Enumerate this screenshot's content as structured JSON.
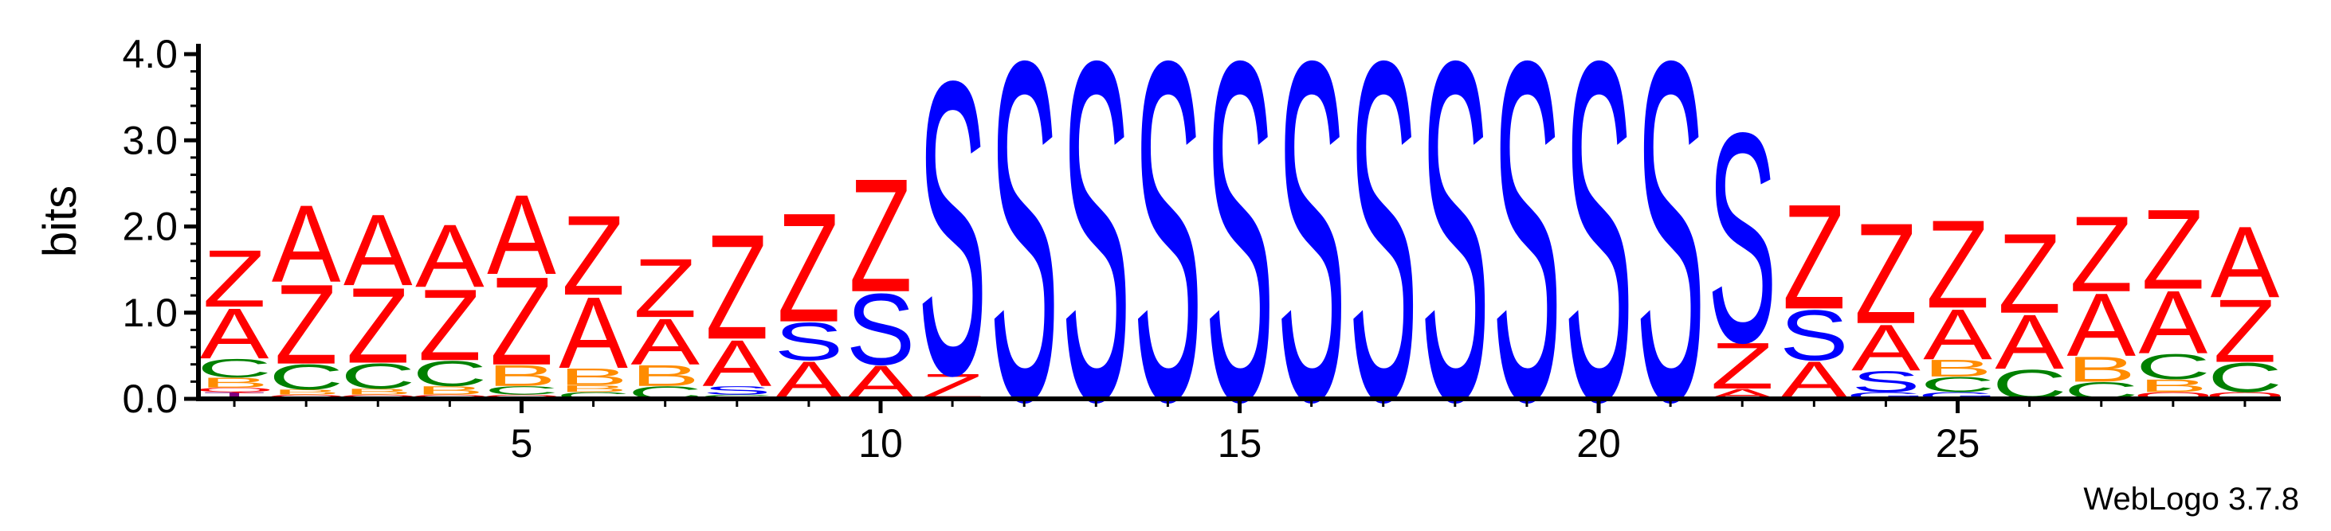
{
  "chart_data": {
    "type": "sequence-logo",
    "ylabel": "bits",
    "ylim": [
      0,
      4.0
    ],
    "yticks": [
      "0.0",
      "1.0",
      "2.0",
      "3.0",
      "4.0"
    ],
    "xlim": [
      0.5,
      29.5
    ],
    "xticks": [
      "5",
      "10",
      "15",
      "20",
      "25"
    ],
    "credit": "WebLogo 3.7.8",
    "colors": {
      "A": "#ff0000",
      "Z": "#ff0000",
      "S": "#0000ff",
      "C": "#008000",
      "B": "#ff8c00",
      "G": "#0000ff",
      "T": "#800080",
      "Q": "#ff0000"
    },
    "columns": [
      {
        "pos": 1,
        "stack": [
          [
            "T",
            0.08
          ],
          [
            "Q",
            0.05
          ],
          [
            "B",
            0.12
          ],
          [
            "C",
            0.22
          ],
          [
            "A",
            0.6
          ],
          [
            "Z",
            0.68
          ]
        ]
      },
      {
        "pos": 2,
        "stack": [
          [
            "Q",
            0.05
          ],
          [
            "B",
            0.06
          ],
          [
            "C",
            0.3
          ],
          [
            "Z",
            0.95
          ],
          [
            "A",
            0.92
          ]
        ]
      },
      {
        "pos": 3,
        "stack": [
          [
            "Q",
            0.05
          ],
          [
            "B",
            0.07
          ],
          [
            "C",
            0.3
          ],
          [
            "Z",
            0.9
          ],
          [
            "A",
            0.85
          ]
        ]
      },
      {
        "pos": 4,
        "stack": [
          [
            "Q",
            0.05
          ],
          [
            "B",
            0.1
          ],
          [
            "C",
            0.3
          ],
          [
            "Z",
            0.85
          ],
          [
            "A",
            0.75
          ]
        ]
      },
      {
        "pos": 5,
        "stack": [
          [
            "Q",
            0.05
          ],
          [
            "C",
            0.1
          ],
          [
            "B",
            0.25
          ],
          [
            "Z",
            1.05
          ],
          [
            "A",
            0.95
          ]
        ]
      },
      {
        "pos": 6,
        "stack": [
          [
            "C",
            0.08
          ],
          [
            "B",
            0.08
          ],
          [
            "B",
            0.2
          ],
          [
            "A",
            0.85
          ],
          [
            "Z",
            0.95
          ]
        ]
      },
      {
        "pos": 7,
        "stack": [
          [
            "C",
            0.15
          ],
          [
            "B",
            0.25
          ],
          [
            "A",
            0.55
          ],
          [
            "Z",
            0.7
          ]
        ]
      },
      {
        "pos": 8,
        "stack": [
          [
            "C",
            0.05
          ],
          [
            "S",
            0.1
          ],
          [
            "A",
            0.55
          ],
          [
            "Z",
            1.25
          ]
        ]
      },
      {
        "pos": 9,
        "stack": [
          [
            "A",
            0.45
          ],
          [
            "S",
            0.45
          ],
          [
            "Z",
            1.3
          ]
        ]
      },
      {
        "pos": 10,
        "stack": [
          [
            "A",
            0.4
          ],
          [
            "S",
            0.85
          ],
          [
            "Z",
            1.35
          ]
        ]
      },
      {
        "pos": 11,
        "stack": [
          [
            "Z",
            0.3
          ],
          [
            "S",
            3.5
          ]
        ]
      },
      {
        "pos": 12,
        "stack": [
          [
            "S",
            4.05
          ]
        ]
      },
      {
        "pos": 13,
        "stack": [
          [
            "S",
            4.05
          ]
        ]
      },
      {
        "pos": 14,
        "stack": [
          [
            "S",
            4.05
          ]
        ]
      },
      {
        "pos": 15,
        "stack": [
          [
            "S",
            4.05
          ]
        ]
      },
      {
        "pos": 16,
        "stack": [
          [
            "S",
            4.05
          ]
        ]
      },
      {
        "pos": 17,
        "stack": [
          [
            "S",
            4.05
          ]
        ]
      },
      {
        "pos": 18,
        "stack": [
          [
            "S",
            4.05
          ]
        ]
      },
      {
        "pos": 19,
        "stack": [
          [
            "S",
            4.05
          ]
        ]
      },
      {
        "pos": 20,
        "stack": [
          [
            "S",
            4.05
          ]
        ]
      },
      {
        "pos": 21,
        "stack": [
          [
            "S",
            4.05
          ]
        ]
      },
      {
        "pos": 22,
        "stack": [
          [
            "A",
            0.12
          ],
          [
            "Z",
            0.55
          ],
          [
            "S",
            2.5
          ]
        ]
      },
      {
        "pos": 23,
        "stack": [
          [
            "A",
            0.45
          ],
          [
            "S",
            0.6
          ],
          [
            "Z",
            1.25
          ]
        ]
      },
      {
        "pos": 24,
        "stack": [
          [
            "G",
            0.08
          ],
          [
            "S",
            0.25
          ],
          [
            "A",
            0.55
          ],
          [
            "Z",
            1.2
          ]
        ]
      },
      {
        "pos": 25,
        "stack": [
          [
            "G",
            0.08
          ],
          [
            "C",
            0.18
          ],
          [
            "B",
            0.2
          ],
          [
            "A",
            0.6
          ],
          [
            "Z",
            1.05
          ]
        ]
      },
      {
        "pos": 26,
        "stack": [
          [
            "C",
            0.35
          ],
          [
            "A",
            0.65
          ],
          [
            "Z",
            0.95
          ]
        ]
      },
      {
        "pos": 27,
        "stack": [
          [
            "C",
            0.2
          ],
          [
            "B",
            0.3
          ],
          [
            "A",
            0.75
          ],
          [
            "Z",
            0.9
          ]
        ]
      },
      {
        "pos": 28,
        "stack": [
          [
            "Q",
            0.08
          ],
          [
            "B",
            0.15
          ],
          [
            "C",
            0.3
          ],
          [
            "A",
            0.75
          ],
          [
            "Z",
            0.95
          ]
        ]
      },
      {
        "pos": 29,
        "stack": [
          [
            "Q",
            0.08
          ],
          [
            "C",
            0.35
          ],
          [
            "Z",
            0.75
          ],
          [
            "A",
            0.85
          ]
        ]
      }
    ]
  }
}
